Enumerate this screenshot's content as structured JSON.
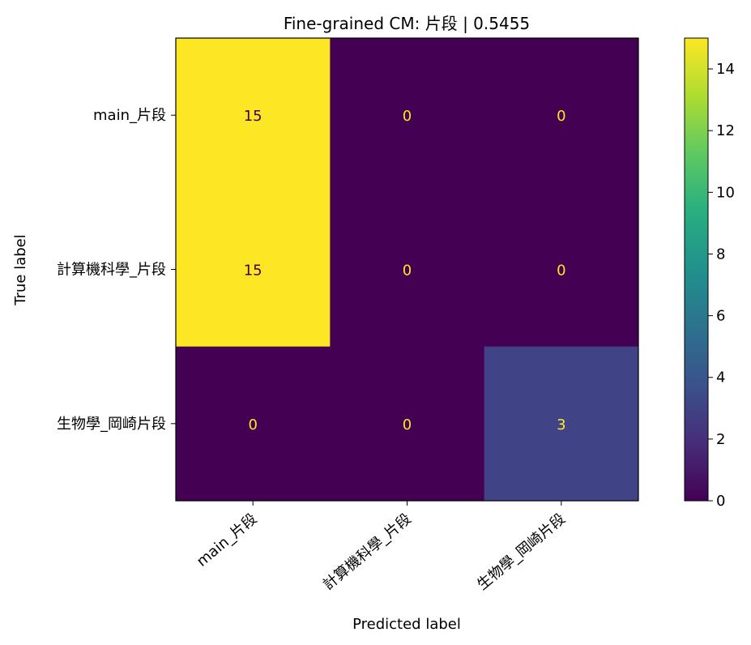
{
  "chart_data": {
    "type": "heatmap",
    "title": "Fine-grained CM: 片段 | 0.5455",
    "xlabel": "Predicted label",
    "ylabel": "True label",
    "x_categories": [
      "main_片段",
      "計算機科學_片段",
      "生物學_岡崎片段"
    ],
    "y_categories": [
      "main_片段",
      "計算機科學_片段",
      "生物學_岡崎片段"
    ],
    "matrix": [
      [
        15,
        0,
        0
      ],
      [
        15,
        0,
        0
      ],
      [
        0,
        0,
        3
      ]
    ],
    "colormap": "viridis",
    "colorbar_range": [
      0,
      15
    ],
    "colorbar_ticks": [
      0,
      2,
      4,
      6,
      8,
      10,
      12,
      14
    ]
  }
}
